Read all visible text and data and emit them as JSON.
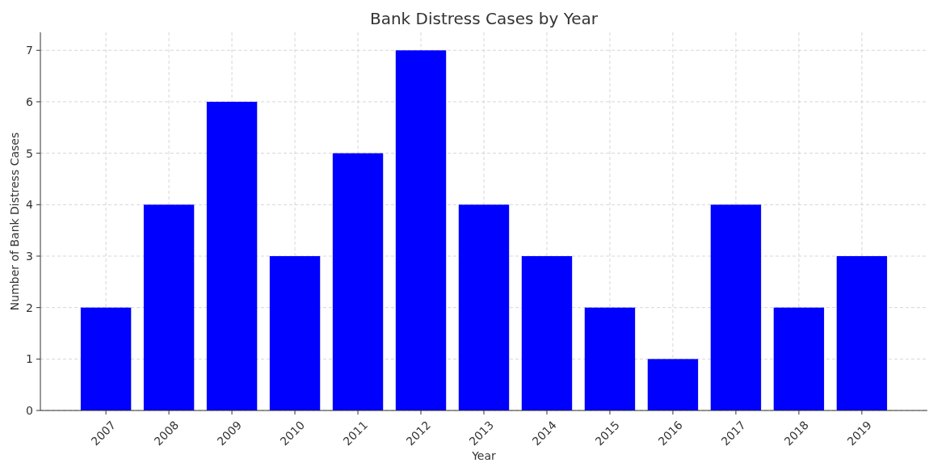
{
  "chart_data": {
    "type": "bar",
    "title": "Bank Distress Cases by Year",
    "xlabel": "Year",
    "ylabel": "Number of Bank Distress Cases",
    "categories": [
      "2007",
      "2008",
      "2009",
      "2010",
      "2011",
      "2012",
      "2013",
      "2014",
      "2015",
      "2016",
      "2017",
      "2018",
      "2019"
    ],
    "values": [
      2,
      4,
      6,
      3,
      5,
      7,
      4,
      3,
      2,
      1,
      4,
      2,
      3
    ],
    "color": "#0000ff",
    "ylim": [
      0,
      7.35
    ],
    "yticks": [
      0,
      1,
      2,
      3,
      4,
      5,
      6,
      7
    ],
    "grid": true
  }
}
